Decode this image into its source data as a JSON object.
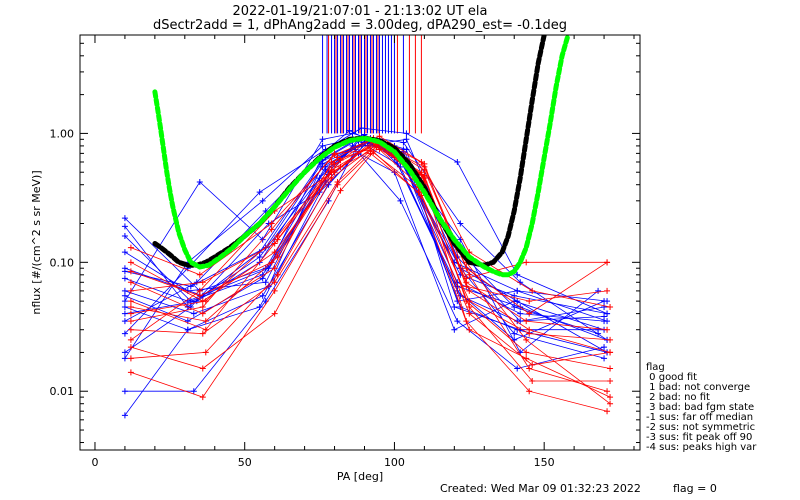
{
  "header": {
    "title_line1": "2022-01-19/21:07:01 - 21:13:02 UT ela",
    "title_line2": "dSectr2add = 1, dPhAng2add = 3.00deg, dPA290_est=  -0.1deg"
  },
  "footer": {
    "created": "Created: Wed Mar 09 01:32:23 2022",
    "flag_value": "flag = 0"
  },
  "legend": {
    "title": "flag",
    "entries": [
      " 0 good fit",
      " 1 bad: not converge",
      " 2 bad: no fit",
      " 3 bad: bad fgm state",
      "-1 sus: far off median",
      "-2 sus: not symmetric",
      "-3 sus: fit peak off 90",
      "-4 sus: peaks high var"
    ]
  },
  "colors": {
    "red": "#ff0000",
    "blue": "#0000ff",
    "green": "#00ff00",
    "black": "#000000",
    "axis": "#000000"
  },
  "chart_data": {
    "type": "line",
    "xlabel": "PA [deg]",
    "ylabel": "nflux [#/(cm^2 s sr MeV)]",
    "xlim": [
      -5,
      182
    ],
    "ylim": [
      0.0035,
      5.8
    ],
    "yscale": "log",
    "xticks": [
      0,
      50,
      100,
      150
    ],
    "yticks": [
      0.01,
      0.1,
      1.0
    ],
    "ytick_labels": [
      "0.01",
      "0.10",
      "1.00"
    ],
    "xtick_labels": [
      "0",
      "50",
      "100",
      "150"
    ],
    "vertical_lines": {
      "blue_x": [
        76,
        77.5,
        79,
        80,
        81,
        82,
        83,
        84,
        85,
        86,
        87,
        88,
        89,
        90,
        91,
        92,
        93,
        94,
        95,
        96,
        97,
        98,
        99,
        100,
        103
      ],
      "red_x": [
        78,
        80.5,
        82.5,
        84.5,
        86.5,
        88.5,
        90.5,
        92.5,
        94.5,
        101,
        105,
        107,
        109
      ],
      "ymin": 1.0
    },
    "blue_curves": [
      {
        "x": [
          10,
          35,
          57,
          77,
          90,
          103,
          122,
          141,
          171
        ],
        "y": [
          0.22,
          0.06,
          0.09,
          0.55,
          0.85,
          0.75,
          0.09,
          0.05,
          0.02
        ]
      },
      {
        "x": [
          10,
          31,
          55,
          76,
          88,
          102,
          121,
          142,
          170
        ],
        "y": [
          0.19,
          0.045,
          0.12,
          0.62,
          0.9,
          0.65,
          0.07,
          0.04,
          0.035
        ]
      },
      {
        "x": [
          10,
          32,
          56,
          78,
          89,
          101,
          122,
          140,
          168
        ],
        "y": [
          0.16,
          0.05,
          0.08,
          0.5,
          0.95,
          0.7,
          0.12,
          0.045,
          0.028
        ]
      },
      {
        "x": [
          10,
          31,
          57,
          75,
          86,
          100,
          120,
          141,
          171
        ],
        "y": [
          0.12,
          0.06,
          0.07,
          0.45,
          0.8,
          0.8,
          0.1,
          0.06,
          0.035
        ]
      },
      {
        "x": [
          10,
          36,
          55,
          77,
          87,
          104,
          121,
          142,
          170
        ],
        "y": [
          0.09,
          0.055,
          0.11,
          0.52,
          0.78,
          0.9,
          0.11,
          0.035,
          0.045
        ]
      },
      {
        "x": [
          10,
          33,
          58,
          76,
          91,
          103,
          122,
          141,
          171
        ],
        "y": [
          0.06,
          0.04,
          0.065,
          0.58,
          0.88,
          0.6,
          0.045,
          0.03,
          0.02
        ]
      },
      {
        "x": [
          10,
          31,
          56,
          78,
          92,
          102,
          121,
          140,
          170
        ],
        "y": [
          0.045,
          0.03,
          0.055,
          0.4,
          0.92,
          0.55,
          0.06,
          0.025,
          0.05
        ]
      },
      {
        "x": [
          10,
          34,
          57,
          76,
          85,
          101,
          122,
          142,
          168
        ],
        "y": [
          0.035,
          0.07,
          0.25,
          0.7,
          1.05,
          0.7,
          0.15,
          0.02,
          0.06
        ]
      },
      {
        "x": [
          10,
          31,
          55,
          77,
          89,
          104,
          121,
          141,
          171
        ],
        "y": [
          0.028,
          0.09,
          0.35,
          0.75,
          1.1,
          1.0,
          0.6,
          0.08,
          0.04
        ]
      },
      {
        "x": [
          10,
          32,
          58,
          75,
          88,
          100,
          120,
          140,
          170
        ],
        "y": [
          0.02,
          0.045,
          0.2,
          0.35,
          0.7,
          0.5,
          0.03,
          0.05,
          0.03
        ]
      },
      {
        "x": [
          10,
          31,
          56,
          76,
          90,
          103,
          122,
          142,
          171
        ],
        "y": [
          0.018,
          0.1,
          0.3,
          0.8,
          0.95,
          0.85,
          0.2,
          0.07,
          0.025
        ]
      },
      {
        "x": [
          10,
          33,
          57,
          78,
          87,
          102,
          121,
          141,
          170
        ],
        "y": [
          0.01,
          0.01,
          0.05,
          0.3,
          0.75,
          0.3,
          0.035,
          0.015,
          0.022
        ]
      },
      {
        "x": [
          10,
          31,
          55,
          77,
          91,
          101,
          122,
          140,
          171
        ],
        "y": [
          0.0065,
          0.03,
          0.045,
          0.42,
          0.85,
          0.68,
          0.08,
          0.055,
          0.04
        ]
      },
      {
        "x": [
          10,
          35,
          56,
          76,
          86,
          104,
          120,
          142,
          168
        ],
        "y": [
          0.05,
          0.42,
          0.15,
          0.9,
          1.0,
          0.75,
          0.045,
          0.03,
          0.03
        ]
      },
      {
        "x": [
          10,
          31,
          58,
          75,
          89,
          103,
          121,
          141,
          171
        ],
        "y": [
          0.075,
          0.05,
          0.09,
          0.6,
          0.82,
          0.72,
          0.05,
          0.06,
          0.05
        ]
      },
      {
        "x": [
          10,
          32,
          57,
          77,
          90,
          102,
          122,
          140,
          170
        ],
        "y": [
          0.085,
          0.065,
          0.13,
          0.65,
          0.98,
          0.62,
          0.09,
          0.028,
          0.018
        ]
      },
      {
        "x": [
          10,
          31,
          56,
          78,
          88,
          101,
          121,
          142,
          171
        ],
        "y": [
          0.055,
          0.035,
          0.075,
          0.48,
          0.87,
          0.58,
          0.065,
          0.045,
          0.025
        ]
      },
      {
        "x": [
          10,
          34,
          55,
          76,
          92,
          100,
          122,
          141,
          170
        ],
        "y": [
          0.04,
          0.05,
          0.1,
          0.55,
          0.9,
          0.65,
          0.055,
          0.035,
          0.038
        ]
      }
    ],
    "red_curves": [
      {
        "x": [
          12,
          36,
          60,
          80,
          93,
          110,
          125,
          145,
          172
        ],
        "y": [
          0.1,
          0.05,
          0.12,
          0.5,
          0.85,
          0.45,
          0.06,
          0.03,
          0.02
        ]
      },
      {
        "x": [
          12,
          36,
          60,
          79,
          94,
          109,
          124,
          144,
          172
        ],
        "y": [
          0.07,
          0.04,
          0.09,
          0.6,
          0.8,
          0.5,
          0.05,
          0.02,
          0.015
        ]
      },
      {
        "x": [
          12,
          37,
          61,
          81,
          92,
          110,
          125,
          145,
          171
        ],
        "y": [
          0.05,
          0.03,
          0.15,
          0.65,
          0.9,
          0.55,
          0.08,
          0.015,
          0.01
        ]
      },
      {
        "x": [
          12,
          36,
          59,
          80,
          95,
          108,
          124,
          144,
          172
        ],
        "y": [
          0.035,
          0.045,
          0.18,
          0.7,
          0.75,
          0.4,
          0.1,
          0.025,
          0.008
        ]
      },
      {
        "x": [
          12,
          35,
          60,
          82,
          93,
          109,
          125,
          146,
          172
        ],
        "y": [
          0.025,
          0.06,
          0.25,
          0.55,
          0.88,
          0.48,
          0.045,
          0.012,
          0.012
        ]
      },
      {
        "x": [
          12,
          37,
          61,
          79,
          94,
          110,
          124,
          145,
          171
        ],
        "y": [
          0.018,
          0.02,
          0.08,
          0.45,
          0.82,
          0.42,
          0.035,
          0.01,
          0.007
        ]
      },
      {
        "x": [
          12,
          36,
          60,
          81,
          92,
          108,
          125,
          144,
          172
        ],
        "y": [
          0.014,
          0.009,
          0.06,
          0.4,
          0.7,
          0.35,
          0.03,
          0.018,
          0.009
        ]
      },
      {
        "x": [
          12,
          35,
          59,
          80,
          95,
          110,
          124,
          145,
          171
        ],
        "y": [
          0.085,
          0.055,
          0.1,
          0.58,
          0.86,
          0.52,
          0.09,
          0.04,
          0.1
        ]
      },
      {
        "x": [
          12,
          36,
          60,
          82,
          93,
          109,
          125,
          146,
          172
        ],
        "y": [
          0.06,
          0.07,
          0.14,
          0.62,
          0.92,
          0.6,
          0.12,
          0.06,
          0.045
        ]
      },
      {
        "x": [
          12,
          37,
          61,
          79,
          94,
          110,
          124,
          144,
          171
        ],
        "y": [
          0.045,
          0.035,
          0.11,
          0.5,
          0.78,
          0.46,
          0.07,
          0.035,
          0.03
        ]
      },
      {
        "x": [
          12,
          36,
          60,
          81,
          92,
          108,
          125,
          145,
          172
        ],
        "y": [
          0.03,
          0.028,
          0.07,
          0.42,
          0.74,
          0.38,
          0.05,
          0.028,
          0.025
        ]
      },
      {
        "x": [
          12,
          35,
          59,
          80,
          95,
          110,
          124,
          144,
          171
        ],
        "y": [
          0.13,
          0.08,
          0.2,
          0.68,
          0.95,
          0.58,
          0.075,
          0.1,
          0.1
        ]
      },
      {
        "x": [
          12,
          36,
          60,
          82,
          93,
          109,
          125,
          146,
          172
        ],
        "y": [
          0.022,
          0.015,
          0.04,
          0.36,
          0.72,
          0.33,
          0.04,
          0.016,
          0.02
        ]
      },
      {
        "x": [
          12,
          37,
          61,
          79,
          94,
          110,
          124,
          145,
          171
        ],
        "y": [
          0.04,
          0.05,
          0.16,
          0.52,
          0.84,
          0.47,
          0.065,
          0.05,
          0.06
        ]
      }
    ],
    "black_fit": {
      "x": [
        20,
        22,
        25,
        28,
        31,
        34,
        37,
        40,
        45,
        50,
        55,
        60,
        65,
        70,
        75,
        80,
        85,
        90,
        95,
        100,
        105,
        110,
        115,
        120,
        125,
        130,
        133,
        136,
        138,
        140,
        142,
        144,
        146,
        148,
        150
      ],
      "y": [
        0.14,
        0.13,
        0.115,
        0.1,
        0.095,
        0.095,
        0.1,
        0.11,
        0.13,
        0.16,
        0.2,
        0.27,
        0.38,
        0.5,
        0.65,
        0.8,
        0.9,
        0.92,
        0.88,
        0.77,
        0.58,
        0.38,
        0.22,
        0.14,
        0.1,
        0.095,
        0.1,
        0.12,
        0.16,
        0.25,
        0.45,
        0.9,
        1.8,
        3.5,
        5.8
      ]
    },
    "green_fit": {
      "x": [
        20,
        21,
        22,
        23,
        24,
        25,
        26,
        28,
        30,
        32,
        35,
        38,
        42,
        46,
        50,
        55,
        60,
        65,
        70,
        75,
        80,
        85,
        90,
        95,
        100,
        105,
        110,
        115,
        120,
        125,
        130,
        133,
        136,
        138,
        140,
        142,
        144,
        146,
        148,
        150,
        152,
        154,
        156,
        158
      ],
      "y": [
        2.1,
        1.5,
        1.05,
        0.72,
        0.5,
        0.36,
        0.27,
        0.17,
        0.125,
        0.1,
        0.092,
        0.095,
        0.11,
        0.13,
        0.16,
        0.2,
        0.27,
        0.37,
        0.5,
        0.64,
        0.78,
        0.88,
        0.92,
        0.86,
        0.72,
        0.52,
        0.35,
        0.22,
        0.15,
        0.11,
        0.092,
        0.085,
        0.08,
        0.08,
        0.085,
        0.1,
        0.13,
        0.2,
        0.35,
        0.65,
        1.2,
        2.3,
        4.0,
        5.8
      ]
    }
  }
}
